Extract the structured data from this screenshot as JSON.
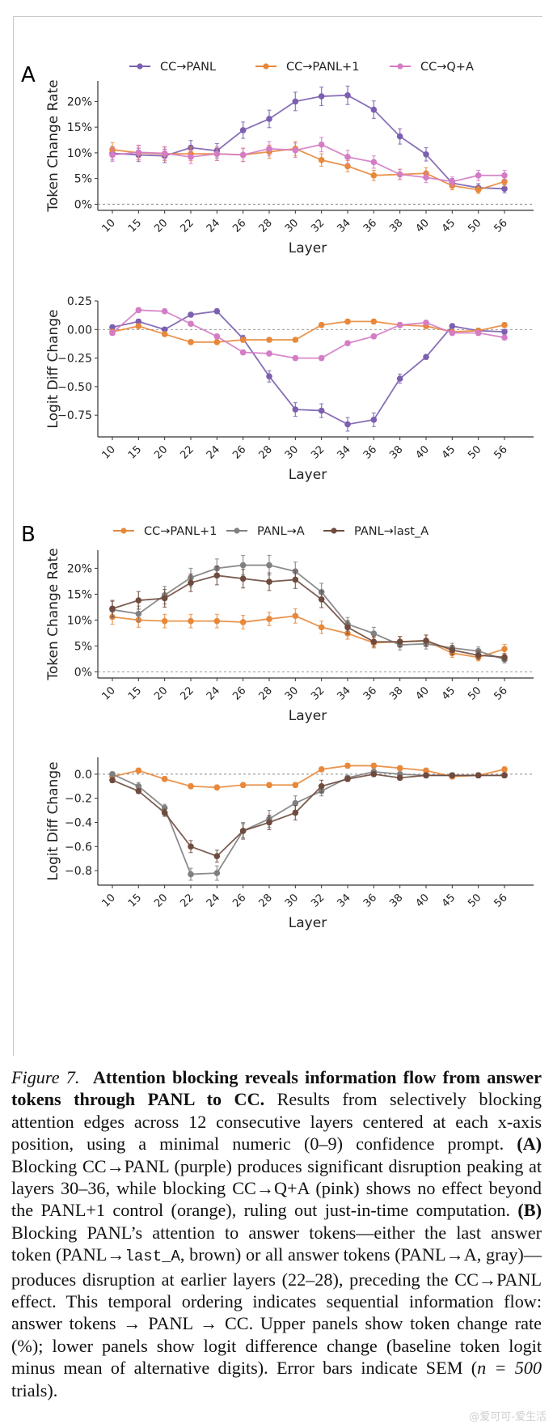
{
  "figure": {
    "panel_a_letter": "A",
    "panel_b_letter": "B"
  },
  "chart_data": [
    {
      "id": "A-top",
      "type": "line",
      "panel": "A",
      "title": "",
      "xlabel": "Layer",
      "ylabel": "Token Change Rate",
      "categories": [
        "10",
        "15",
        "20",
        "22",
        "24",
        "26",
        "28",
        "30",
        "32",
        "34",
        "36",
        "38",
        "40",
        "45",
        "50",
        "56"
      ],
      "ylim": [
        -1.2,
        24
      ],
      "yticks": [
        0,
        5,
        10,
        15,
        20
      ],
      "ytick_labels": [
        "0%",
        "5%",
        "10%",
        "15%",
        "20%"
      ],
      "reference_line": 0,
      "legend": "top",
      "series": [
        {
          "name": "CC→PANL",
          "color": "#7b5fb0",
          "values": [
            9.9,
            9.6,
            9.4,
            11.0,
            10.4,
            14.4,
            16.6,
            20.0,
            21.0,
            21.2,
            18.4,
            13.2,
            9.7,
            4.1,
            3.2,
            3.0
          ],
          "err": [
            1.3,
            1.3,
            1.3,
            1.4,
            1.4,
            1.6,
            1.7,
            1.8,
            1.8,
            1.8,
            1.7,
            1.5,
            1.3,
            0.9,
            0.8,
            0.8
          ]
        },
        {
          "name": "CC→PANL+1",
          "color": "#e8883a",
          "values": [
            10.6,
            10.0,
            9.8,
            9.8,
            9.8,
            9.6,
            10.2,
            10.8,
            8.6,
            7.4,
            5.6,
            5.8,
            6.0,
            3.6,
            2.8,
            4.4
          ],
          "err": [
            1.4,
            1.4,
            1.3,
            1.3,
            1.3,
            1.3,
            1.3,
            1.4,
            1.2,
            1.1,
            1.0,
            1.0,
            1.1,
            0.8,
            0.7,
            0.9
          ]
        },
        {
          "name": "CC→Q+A",
          "color": "#d47cc5",
          "values": [
            9.6,
            10.1,
            9.9,
            9.2,
            9.8,
            9.6,
            10.8,
            10.5,
            11.6,
            9.2,
            8.2,
            5.8,
            5.2,
            4.4,
            5.6,
            5.6
          ],
          "err": [
            1.3,
            1.4,
            1.3,
            1.3,
            1.3,
            1.3,
            1.4,
            1.4,
            1.4,
            1.3,
            1.2,
            1.0,
            1.0,
            0.9,
            1.0,
            1.0
          ]
        }
      ]
    },
    {
      "id": "A-bottom",
      "type": "line",
      "panel": "A",
      "title": "",
      "xlabel": "Layer",
      "ylabel": "Logit Diff Change",
      "categories": [
        "10",
        "15",
        "20",
        "22",
        "24",
        "26",
        "28",
        "30",
        "32",
        "34",
        "36",
        "38",
        "40",
        "45",
        "50",
        "56"
      ],
      "ylim": [
        -0.94,
        0.25
      ],
      "yticks": [
        0.25,
        0.0,
        -0.25,
        -0.5,
        -0.75
      ],
      "ytick_labels": [
        "0.25",
        "0.00",
        "−0.25",
        "−0.50",
        "−0.75"
      ],
      "reference_line": 0,
      "series": [
        {
          "name": "CC→PANL",
          "color": "#7b5fb0",
          "values": [
            0.02,
            0.07,
            0.0,
            0.13,
            0.16,
            -0.08,
            -0.41,
            -0.7,
            -0.71,
            -0.83,
            -0.79,
            -0.43,
            -0.24,
            0.03,
            -0.01,
            -0.02
          ],
          "err": [
            0.02,
            0.02,
            0.02,
            0.02,
            0.02,
            0.03,
            0.05,
            0.06,
            0.06,
            0.06,
            0.06,
            0.04,
            0.02,
            0.02,
            0.02,
            0.02
          ]
        },
        {
          "name": "CC→PANL+1",
          "color": "#e8883a",
          "values": [
            -0.02,
            0.03,
            -0.04,
            -0.11,
            -0.11,
            -0.09,
            -0.09,
            -0.09,
            0.04,
            0.07,
            0.07,
            0.04,
            0.03,
            -0.02,
            -0.01,
            0.04
          ],
          "err": [
            0.02,
            0.02,
            0.02,
            0.02,
            0.02,
            0.02,
            0.02,
            0.02,
            0.02,
            0.02,
            0.02,
            0.02,
            0.02,
            0.02,
            0.02,
            0.02
          ]
        },
        {
          "name": "CC→Q+A",
          "color": "#d47cc5",
          "values": [
            -0.03,
            0.17,
            0.16,
            0.05,
            -0.06,
            -0.2,
            -0.21,
            -0.25,
            -0.25,
            -0.12,
            -0.06,
            0.04,
            0.06,
            -0.03,
            -0.03,
            -0.07
          ],
          "err": [
            0.02,
            0.02,
            0.02,
            0.02,
            0.02,
            0.02,
            0.02,
            0.02,
            0.02,
            0.02,
            0.02,
            0.02,
            0.02,
            0.02,
            0.02,
            0.02
          ]
        }
      ]
    },
    {
      "id": "B-top",
      "type": "line",
      "panel": "B",
      "title": "",
      "xlabel": "Layer",
      "ylabel": "Token Change Rate",
      "categories": [
        "10",
        "15",
        "20",
        "22",
        "24",
        "26",
        "28",
        "30",
        "32",
        "34",
        "36",
        "38",
        "40",
        "45",
        "50",
        "56"
      ],
      "ylim": [
        -1.2,
        23.5
      ],
      "yticks": [
        0,
        5,
        10,
        15,
        20
      ],
      "ytick_labels": [
        "0%",
        "5%",
        "10%",
        "15%",
        "20%"
      ],
      "reference_line": 0,
      "legend": "top",
      "series": [
        {
          "name": "CC→PANL+1",
          "color": "#e8883a",
          "values": [
            10.6,
            10.0,
            9.8,
            9.8,
            9.8,
            9.6,
            10.2,
            10.8,
            8.6,
            7.4,
            5.6,
            5.8,
            6.0,
            3.6,
            2.8,
            4.4
          ],
          "err": [
            1.4,
            1.4,
            1.3,
            1.3,
            1.3,
            1.3,
            1.3,
            1.4,
            1.2,
            1.1,
            1.0,
            1.0,
            1.1,
            0.8,
            0.7,
            0.9
          ]
        },
        {
          "name": "PANL→A",
          "color": "#808080",
          "values": [
            12.0,
            11.2,
            14.8,
            18.2,
            20.0,
            20.6,
            20.6,
            19.4,
            15.4,
            9.2,
            7.4,
            5.2,
            5.4,
            4.6,
            4.0,
            2.4
          ],
          "err": [
            1.6,
            1.5,
            1.7,
            1.8,
            1.8,
            1.9,
            1.9,
            1.8,
            1.7,
            1.3,
            1.2,
            1.0,
            1.0,
            0.9,
            0.8,
            0.7
          ]
        },
        {
          "name": "PANL→last_A",
          "color": "#6e4b3e",
          "values": [
            12.2,
            13.8,
            14.2,
            17.2,
            18.6,
            18.0,
            17.4,
            17.8,
            14.0,
            8.6,
            5.8,
            5.8,
            6.0,
            4.2,
            3.2,
            2.8
          ],
          "err": [
            1.6,
            1.7,
            1.7,
            1.7,
            1.8,
            1.8,
            1.7,
            1.7,
            1.6,
            1.3,
            1.0,
            1.0,
            1.1,
            0.9,
            0.8,
            0.7
          ]
        }
      ]
    },
    {
      "id": "B-bottom",
      "type": "line",
      "panel": "B",
      "title": "",
      "xlabel": "Layer",
      "ylabel": "Logit Diff Change",
      "categories": [
        "10",
        "15",
        "20",
        "22",
        "24",
        "26",
        "28",
        "30",
        "32",
        "34",
        "36",
        "38",
        "40",
        "45",
        "50",
        "56"
      ],
      "ylim": [
        -0.92,
        0.14
      ],
      "yticks": [
        0.0,
        -0.2,
        -0.4,
        -0.6,
        -0.8
      ],
      "ytick_labels": [
        "0.0",
        "−0.2",
        "−0.4",
        "−0.6",
        "−0.8"
      ],
      "reference_line": 0,
      "series": [
        {
          "name": "CC→PANL+1",
          "color": "#e8883a",
          "values": [
            -0.02,
            0.03,
            -0.04,
            -0.1,
            -0.11,
            -0.09,
            -0.09,
            -0.09,
            0.04,
            0.07,
            0.07,
            0.05,
            0.03,
            -0.02,
            -0.01,
            0.04
          ],
          "err": [
            0.02,
            0.02,
            0.02,
            0.02,
            0.02,
            0.02,
            0.02,
            0.02,
            0.02,
            0.02,
            0.02,
            0.02,
            0.02,
            0.02,
            0.02,
            0.02
          ]
        },
        {
          "name": "PANL→A",
          "color": "#808080",
          "values": [
            0.0,
            -0.1,
            -0.28,
            -0.83,
            -0.82,
            -0.47,
            -0.37,
            -0.24,
            -0.14,
            -0.03,
            0.02,
            0.0,
            -0.01,
            -0.01,
            -0.01,
            -0.01
          ],
          "err": [
            0.02,
            0.03,
            0.03,
            0.05,
            0.06,
            0.07,
            0.07,
            0.06,
            0.04,
            0.02,
            0.02,
            0.02,
            0.02,
            0.02,
            0.02,
            0.02
          ]
        },
        {
          "name": "PANL→last_A",
          "color": "#6e4b3e",
          "values": [
            -0.05,
            -0.14,
            -0.32,
            -0.6,
            -0.68,
            -0.47,
            -0.4,
            -0.32,
            -0.1,
            -0.04,
            0.0,
            -0.03,
            -0.01,
            -0.01,
            -0.01,
            -0.01
          ],
          "err": [
            0.02,
            0.02,
            0.03,
            0.05,
            0.05,
            0.06,
            0.06,
            0.06,
            0.05,
            0.02,
            0.02,
            0.02,
            0.02,
            0.02,
            0.02,
            0.02
          ]
        }
      ]
    }
  ],
  "caption": {
    "fig_label": "Figure 7.",
    "title": "Attention blocking reveals information flow from answer tokens through PANL to CC.",
    "p1": " Results from selectively blocking attention edges across 12 consecutive layers centered at each x-axis position, using a minimal numeric (0–9) confidence prompt. ",
    "a_label": "(A)",
    "p2": " Blocking CC→PANL (purple) produces significant disruption peaking at layers 30–36, while blocking CC→Q+A (pink) shows no effect beyond the PANL+1 control (orange), ruling out just-in-time computation. ",
    "b_label": "(B)",
    "p3": " Blocking PANL’s attention to answer tokens—either the last answer token (PANL→",
    "mono": "last_A",
    "p4": ", brown) or all answer tokens (PANL→A, gray)—produces disruption at earlier layers (22–28), preceding the CC→PANL effect. This temporal ordering indicates sequential information flow: answer tokens → PANL → CC. Upper panels show token change rate (%); lower panels show logit difference change (baseline token logit minus mean of alternative digits). Error bars indicate SEM (",
    "n_expr": "n = 500",
    "p5": " trials)."
  },
  "watermark": "@爱可可-爱生活"
}
